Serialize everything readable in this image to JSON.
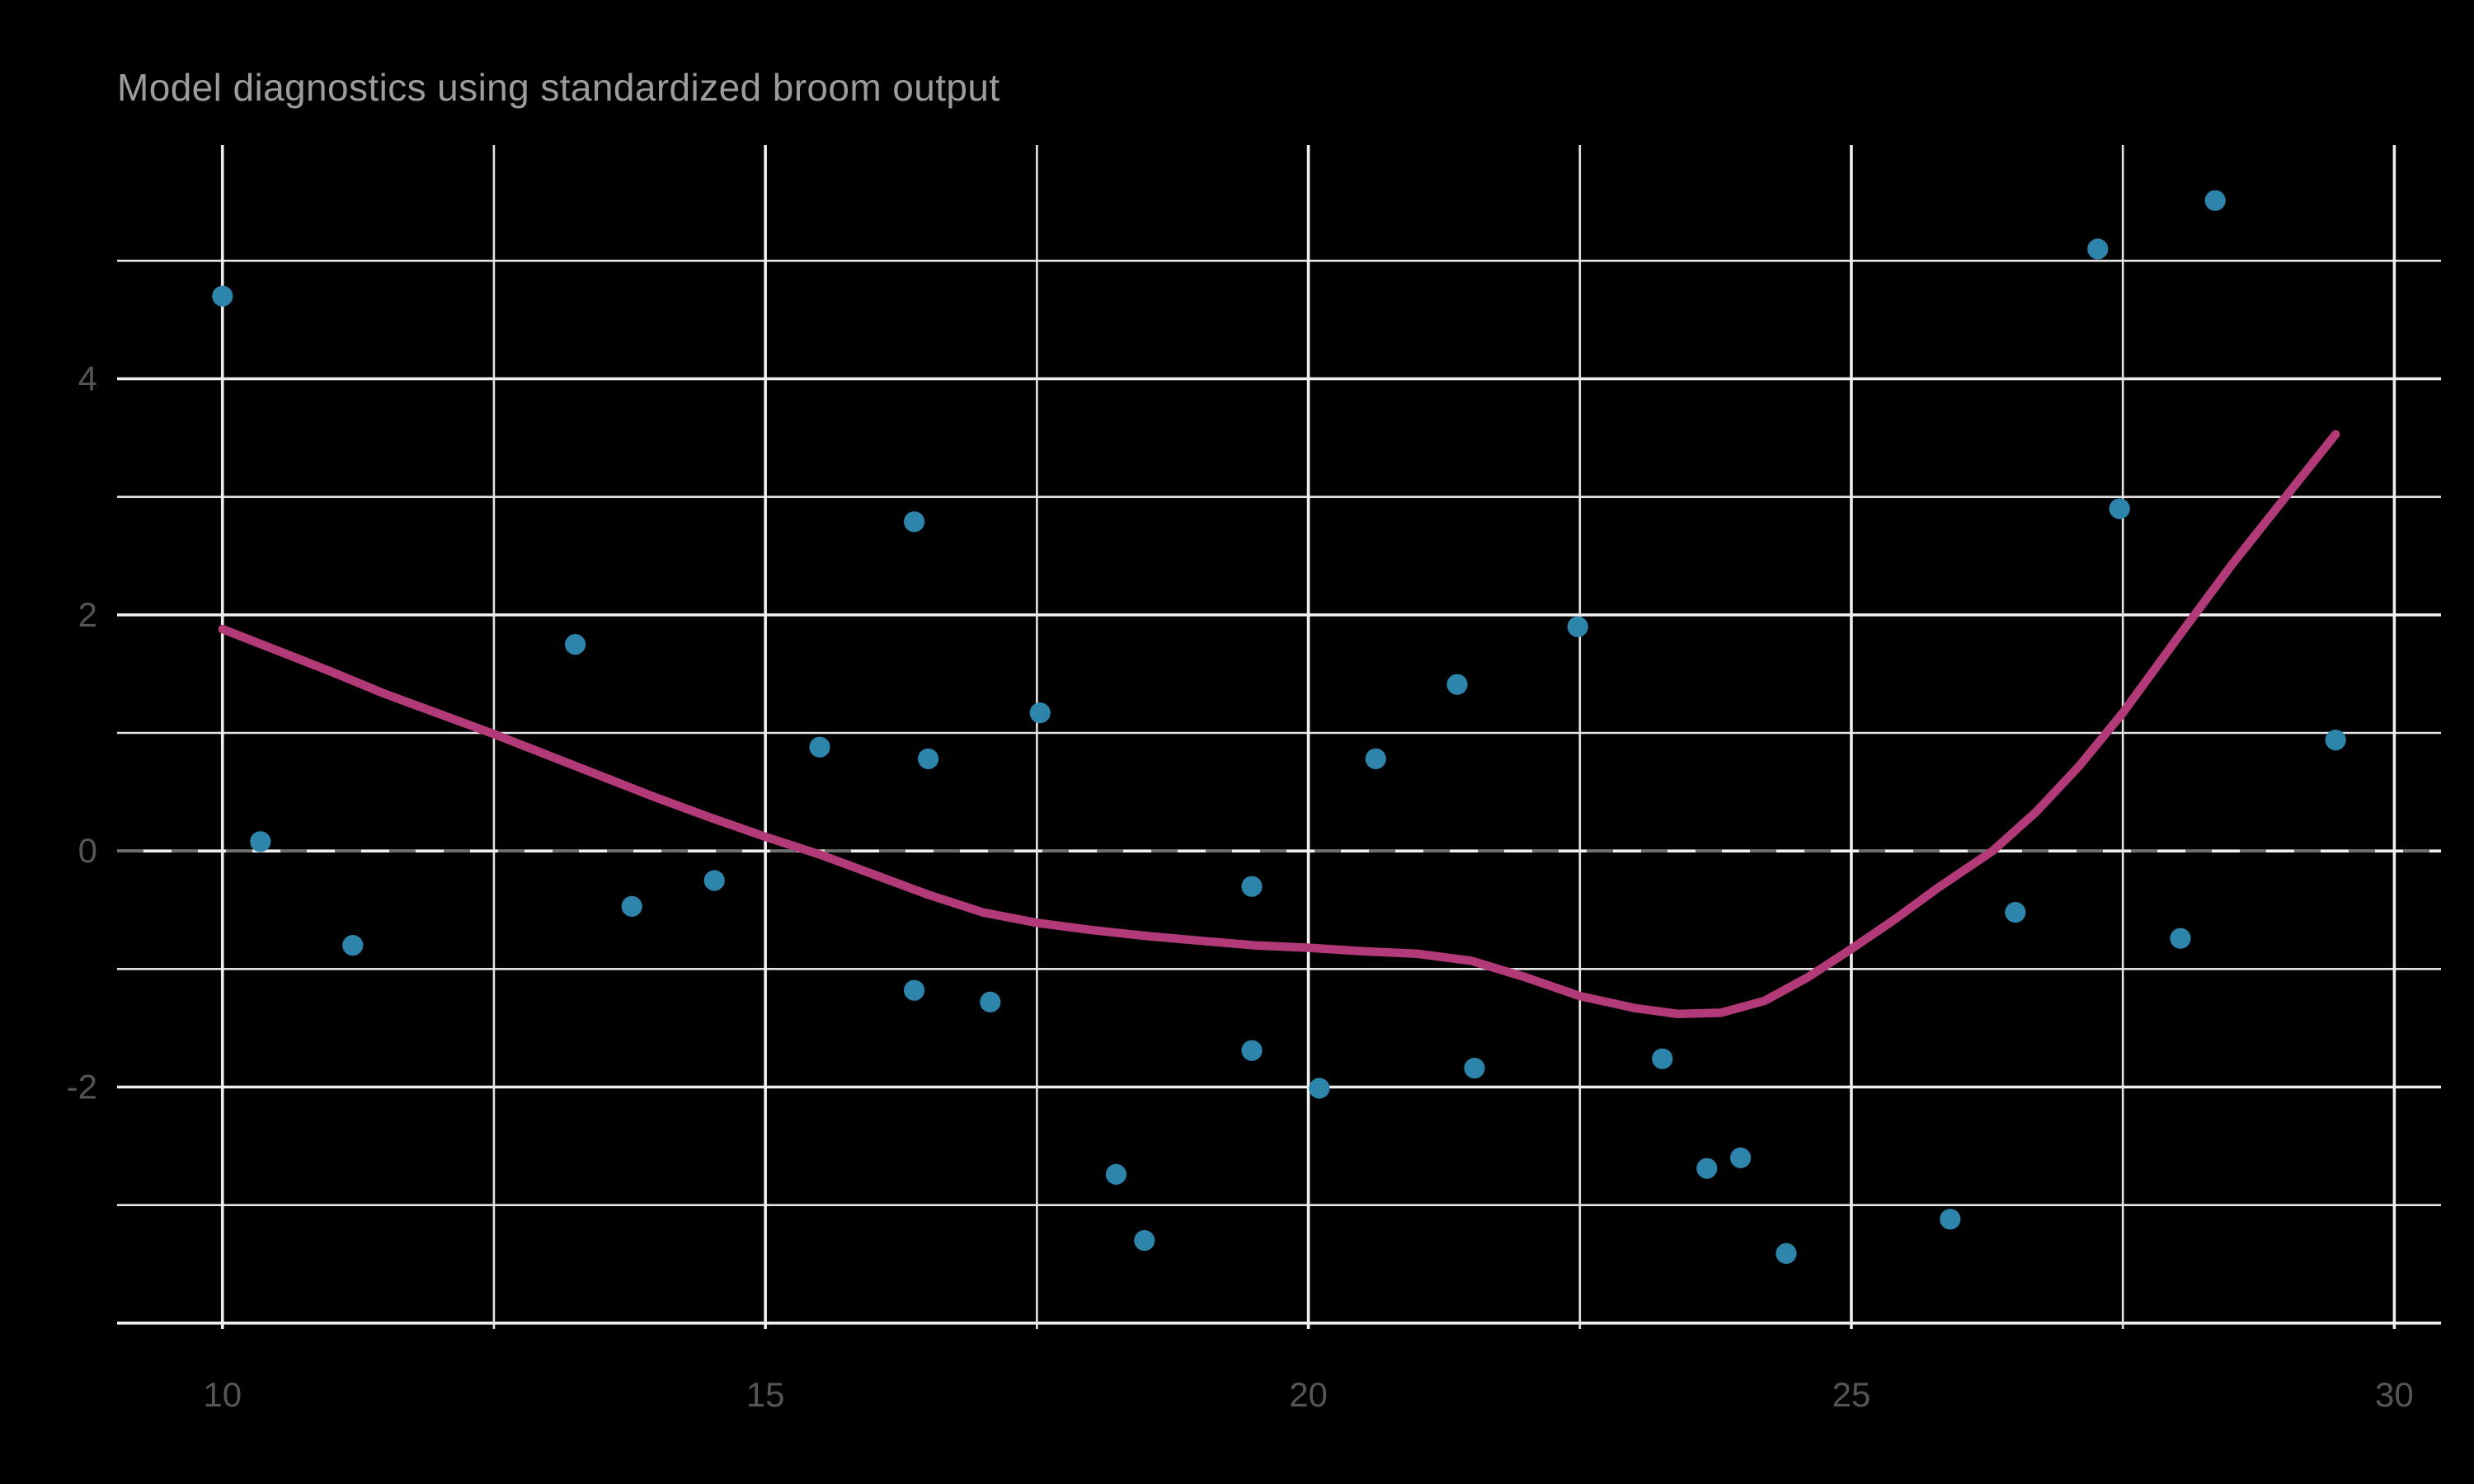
{
  "title": "Model diagnostics using standardized broom output",
  "colors": {
    "background": "#000000",
    "title_text": "#9c9c9c",
    "tick_text": "#555555",
    "grid_major": "#efefef",
    "grid_minor": "#e4e4e4",
    "zero_dash": "#6f6f6f",
    "point_fill": "#2d85ac",
    "smooth_line": "#b23a78"
  },
  "chart_data": {
    "type": "scatter",
    "title": "Model diagnostics using standardized broom output",
    "xlabel": "",
    "ylabel": "",
    "grid": "on",
    "legend": "none",
    "xlim": [
      9.03,
      30.43
    ],
    "ylim": [
      -4.05,
      5.98
    ],
    "x_major_ticks": [
      10,
      15,
      20,
      25,
      30
    ],
    "x_minor_ticks": [
      12.5,
      17.5,
      22.5,
      27.5
    ],
    "y_labeled_ticks": [
      4,
      2,
      0,
      -2
    ],
    "y_gridlines": [
      5,
      4,
      3,
      2,
      1,
      0,
      -1,
      -2,
      -3,
      -4
    ],
    "y_major_values": [
      4,
      2,
      0,
      -2,
      -4
    ],
    "zero_reference_line": 0,
    "points": [
      [
        10.0,
        4.7
      ],
      [
        10.35,
        0.08
      ],
      [
        11.2,
        -0.8
      ],
      [
        13.25,
        1.75
      ],
      [
        13.77,
        -0.47
      ],
      [
        14.53,
        -0.25
      ],
      [
        15.5,
        0.88
      ],
      [
        16.37,
        2.79
      ],
      [
        16.5,
        0.78
      ],
      [
        16.37,
        -1.18
      ],
      [
        17.07,
        -1.28
      ],
      [
        17.53,
        1.17
      ],
      [
        18.23,
        -2.74
      ],
      [
        18.49,
        -3.3
      ],
      [
        19.48,
        -0.3
      ],
      [
        19.48,
        -1.69
      ],
      [
        20.1,
        -2.01
      ],
      [
        20.62,
        0.78
      ],
      [
        21.37,
        1.41
      ],
      [
        21.53,
        -1.84
      ],
      [
        22.48,
        1.9
      ],
      [
        23.26,
        -1.76
      ],
      [
        23.67,
        -2.69
      ],
      [
        23.98,
        -2.6
      ],
      [
        24.4,
        -3.41
      ],
      [
        25.91,
        -3.12
      ],
      [
        26.51,
        -0.52
      ],
      [
        27.27,
        5.1
      ],
      [
        27.47,
        2.9
      ],
      [
        28.03,
        -0.74
      ],
      [
        28.35,
        5.51
      ],
      [
        29.46,
        0.94
      ]
    ],
    "smooth": [
      [
        10.0,
        1.88
      ],
      [
        10.5,
        1.7
      ],
      [
        11.0,
        1.52
      ],
      [
        11.5,
        1.33
      ],
      [
        12.0,
        1.16
      ],
      [
        12.5,
        0.99
      ],
      [
        13.0,
        0.81
      ],
      [
        13.5,
        0.63
      ],
      [
        14.0,
        0.45
      ],
      [
        14.5,
        0.28
      ],
      [
        15.0,
        0.12
      ],
      [
        15.5,
        -0.03
      ],
      [
        16.0,
        -0.2
      ],
      [
        16.5,
        -0.37
      ],
      [
        17.0,
        -0.52
      ],
      [
        17.5,
        -0.61
      ],
      [
        18.0,
        -0.67
      ],
      [
        18.5,
        -0.72
      ],
      [
        19.0,
        -0.76
      ],
      [
        19.5,
        -0.8
      ],
      [
        20.0,
        -0.82
      ],
      [
        20.5,
        -0.85
      ],
      [
        21.0,
        -0.87
      ],
      [
        21.5,
        -0.93
      ],
      [
        22.0,
        -1.07
      ],
      [
        22.5,
        -1.23
      ],
      [
        23.0,
        -1.33
      ],
      [
        23.4,
        -1.38
      ],
      [
        23.8,
        -1.37
      ],
      [
        24.2,
        -1.27
      ],
      [
        24.6,
        -1.07
      ],
      [
        25.0,
        -0.83
      ],
      [
        25.4,
        -0.58
      ],
      [
        25.8,
        -0.31
      ],
      [
        26.3,
        0.0
      ],
      [
        26.7,
        0.33
      ],
      [
        27.1,
        0.72
      ],
      [
        27.5,
        1.17
      ],
      [
        28.0,
        1.8
      ],
      [
        28.5,
        2.42
      ],
      [
        29.0,
        3.0
      ],
      [
        29.46,
        3.53
      ]
    ]
  }
}
